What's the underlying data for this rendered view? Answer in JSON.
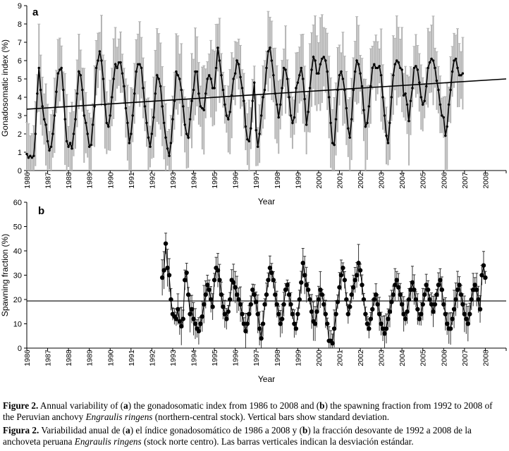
{
  "chart_data": [
    {
      "panel_label": "a",
      "type": "line",
      "xlabel": "Year",
      "ylabel": "Gonadosomatic index (%)",
      "ylim": [
        0,
        9
      ],
      "yticks": [
        0,
        1,
        2,
        3,
        4,
        5,
        6,
        7,
        8,
        9
      ],
      "xlim": [
        1986,
        2009
      ],
      "xticks": [
        "1986",
        "1987",
        "1988",
        "1989",
        "1990",
        "1991",
        "1992",
        "1993",
        "1994",
        "1995",
        "1996",
        "1997",
        "1998",
        "1999",
        "2000",
        "2001",
        "2002",
        "2003",
        "2004",
        "2005",
        "2006",
        "2007",
        "2008"
      ],
      "series": [
        {
          "name": "Monthly gonadosomatic index",
          "points_per_year": 12,
          "start_year": 1986,
          "values": [
            0.9,
            0.7,
            0.8,
            0.7,
            0.8,
            2.0,
            4.2,
            5.6,
            4.4,
            3.5,
            2.8,
            2.5,
            1.6,
            1.1,
            1.3,
            2.0,
            3.0,
            4.3,
            5.3,
            5.5,
            5.6,
            4.4,
            2.8,
            1.6,
            1.3,
            1.5,
            1.2,
            2.0,
            2.8,
            4.2,
            5.4,
            5.2,
            4.4,
            3.0,
            2.6,
            2.0,
            1.3,
            1.4,
            2.5,
            3.5,
            5.6,
            6.0,
            6.5,
            6.0,
            5.0,
            3.6,
            2.6,
            2.4,
            3.0,
            4.0,
            5.0,
            5.8,
            5.6,
            5.9,
            5.9,
            5.3,
            4.6,
            3.4,
            2.6,
            1.5,
            2.0,
            3.0,
            4.2,
            5.4,
            5.8,
            5.8,
            5.6,
            4.5,
            3.5,
            2.6,
            1.8,
            1.3,
            2.0,
            2.9,
            4.2,
            5.2,
            5.0,
            4.6,
            3.5,
            2.6,
            1.8,
            1.2,
            0.8,
            1.5,
            2.8,
            3.8,
            5.4,
            5.2,
            5.0,
            4.4,
            3.5,
            2.5,
            2.0,
            1.8,
            2.8,
            3.8,
            4.4,
            5.4,
            5.4,
            4.2,
            3.5,
            3.4,
            3.3,
            4.2,
            5.0,
            5.2,
            5.0,
            4.5,
            4.5,
            5.6,
            6.7,
            6.0,
            5.2,
            4.4,
            3.6,
            3.0,
            2.8,
            3.2,
            4.1,
            5.0,
            5.3,
            6.0,
            5.8,
            5.1,
            4.5,
            3.8,
            2.4,
            1.7,
            1.6,
            2.3,
            3.8,
            4.8,
            2.2,
            1.3,
            2.0,
            3.0,
            4.0,
            4.4,
            5.6,
            6.5,
            6.7,
            6.0,
            5.2,
            4.2,
            3.6,
            2.9,
            3.6,
            4.5,
            5.6,
            5.5,
            5.0,
            4.0,
            3.0,
            2.6,
            2.9,
            4.5,
            4.8,
            5.2,
            5.6,
            5.0,
            3.9,
            2.5,
            3.2,
            4.5,
            5.5,
            6.2,
            6.0,
            5.3,
            5.3,
            5.8,
            6.1,
            6.2,
            6.0,
            5.4,
            4.0,
            2.6,
            1.5,
            1.4,
            2.8,
            4.4,
            5.2,
            5.4,
            5.0,
            4.4,
            3.4,
            2.3,
            1.8,
            2.8,
            4.4,
            5.4,
            6.0,
            5.8,
            5.3,
            4.6,
            3.3,
            2.4,
            2.6,
            3.5,
            4.6,
            5.6,
            5.8,
            5.6,
            5.6,
            5.7,
            5.2,
            4.0,
            3.0,
            1.9,
            1.5,
            2.6,
            4.0,
            5.2,
            5.8,
            6.0,
            5.9,
            5.6,
            5.5,
            4.1,
            4.2,
            3.6,
            2.7,
            3.8,
            4.5,
            5.6,
            5.7,
            5.5,
            4.8,
            4.0,
            3.6,
            3.8,
            4.6,
            5.6,
            5.9,
            6.1,
            6.0,
            5.6,
            4.9,
            4.4,
            3.6,
            3.0,
            2.9,
            1.9,
            2.4,
            3.6,
            4.4,
            5.4,
            6.0,
            6.1,
            5.6,
            5.2,
            5.2,
            5.3
          ]
        },
        {
          "name": "Linear trend",
          "values": [
            3.35,
            5.0
          ],
          "x": [
            1986,
            2009
          ]
        }
      ]
    },
    {
      "panel_label": "b",
      "type": "scatter",
      "xlabel": "Year",
      "ylabel": "Spawning fraction (%)",
      "ylim": [
        0,
        60
      ],
      "yticks": [
        0,
        10,
        20,
        30,
        40,
        50,
        60
      ],
      "xlim": [
        1986,
        2009
      ],
      "xticks": [
        "1986",
        "1987",
        "1988",
        "1989",
        "1990",
        "1991",
        "1992",
        "1993",
        "1994",
        "1995",
        "1996",
        "1997",
        "1998",
        "1999",
        "2000",
        "2001",
        "2002",
        "2003",
        "2004",
        "2005",
        "2006",
        "2007",
        "2008"
      ],
      "series": [
        {
          "name": "Monthly spawning fraction",
          "points_per_year": 12,
          "start_year": 1992.5,
          "values": [
            29,
            32,
            43,
            33,
            30,
            20,
            14,
            13,
            12,
            16,
            11,
            9,
            12,
            28,
            31,
            22,
            14,
            16,
            12,
            10,
            8,
            7,
            10,
            13,
            18,
            22,
            26,
            24,
            20,
            17,
            28,
            33,
            32,
            28,
            22,
            17,
            14,
            12,
            15,
            20,
            28,
            27,
            25,
            22,
            20,
            18,
            14,
            10,
            7,
            10,
            14,
            18,
            24,
            22,
            19,
            14,
            8,
            4,
            10,
            18,
            22,
            28,
            33,
            31,
            28,
            22,
            18,
            14,
            10,
            12,
            18,
            24,
            26,
            22,
            18,
            14,
            10,
            8,
            14,
            20,
            27,
            35,
            30,
            26,
            24,
            20,
            15,
            11,
            10,
            15,
            20,
            24,
            22,
            18,
            14,
            10,
            3,
            3,
            2,
            8,
            14,
            19,
            25,
            30,
            33,
            28,
            20,
            14,
            17,
            22,
            25,
            28,
            30,
            35,
            32,
            26,
            20,
            14,
            10,
            8,
            12,
            16,
            20,
            22,
            18,
            14,
            10,
            8,
            6,
            8,
            12,
            15,
            19,
            22,
            26,
            28,
            25,
            22,
            18,
            14,
            12,
            15,
            20,
            24,
            27,
            24,
            20,
            16,
            12,
            14,
            18,
            22,
            26,
            24,
            20,
            18,
            15,
            18,
            22,
            26,
            28,
            24,
            18,
            14,
            10,
            8,
            8,
            12,
            16,
            20,
            24,
            26,
            22,
            18,
            14,
            12,
            10,
            14,
            20,
            24,
            26,
            24,
            20,
            16,
            30,
            34,
            29
          ]
        },
        {
          "name": "Mean reference line",
          "values": [
            19.4,
            19.4
          ],
          "x": [
            1986,
            2009
          ]
        }
      ]
    }
  ],
  "caption": {
    "en_label": "Figure 2.",
    "en_text_1": " Annual variability of (",
    "en_a": "a",
    "en_text_2": ") the gonadosomatic index from 1986 to 2008 and (",
    "en_b": "b",
    "en_text_3": ") the spawning fraction from 1992 to 2008 of the Peruvian anchovy ",
    "en_species": "Engraulis ringens",
    "en_text_4": " (northern-central stock). Vertical bars show standard deviation.",
    "es_label": "Figura 2.",
    "es_text_1": " Variabilidad anual de (",
    "es_a": "a",
    "es_text_2": ") el índice gonadosomático de 1986 a 2008 y (",
    "es_b": "b",
    "es_text_3": ") la fracción desovante de 1992 a 2008 de la anchoveta peruana ",
    "es_species": "Engraulis ringens",
    "es_text_4": " (stock norte centro). Las barras verticales indican la desviación estándar."
  },
  "colors": {
    "line": "#000000",
    "error_bar_a": "#b4b4b4",
    "error_bar_b": "#333333",
    "axis": "#000000"
  }
}
